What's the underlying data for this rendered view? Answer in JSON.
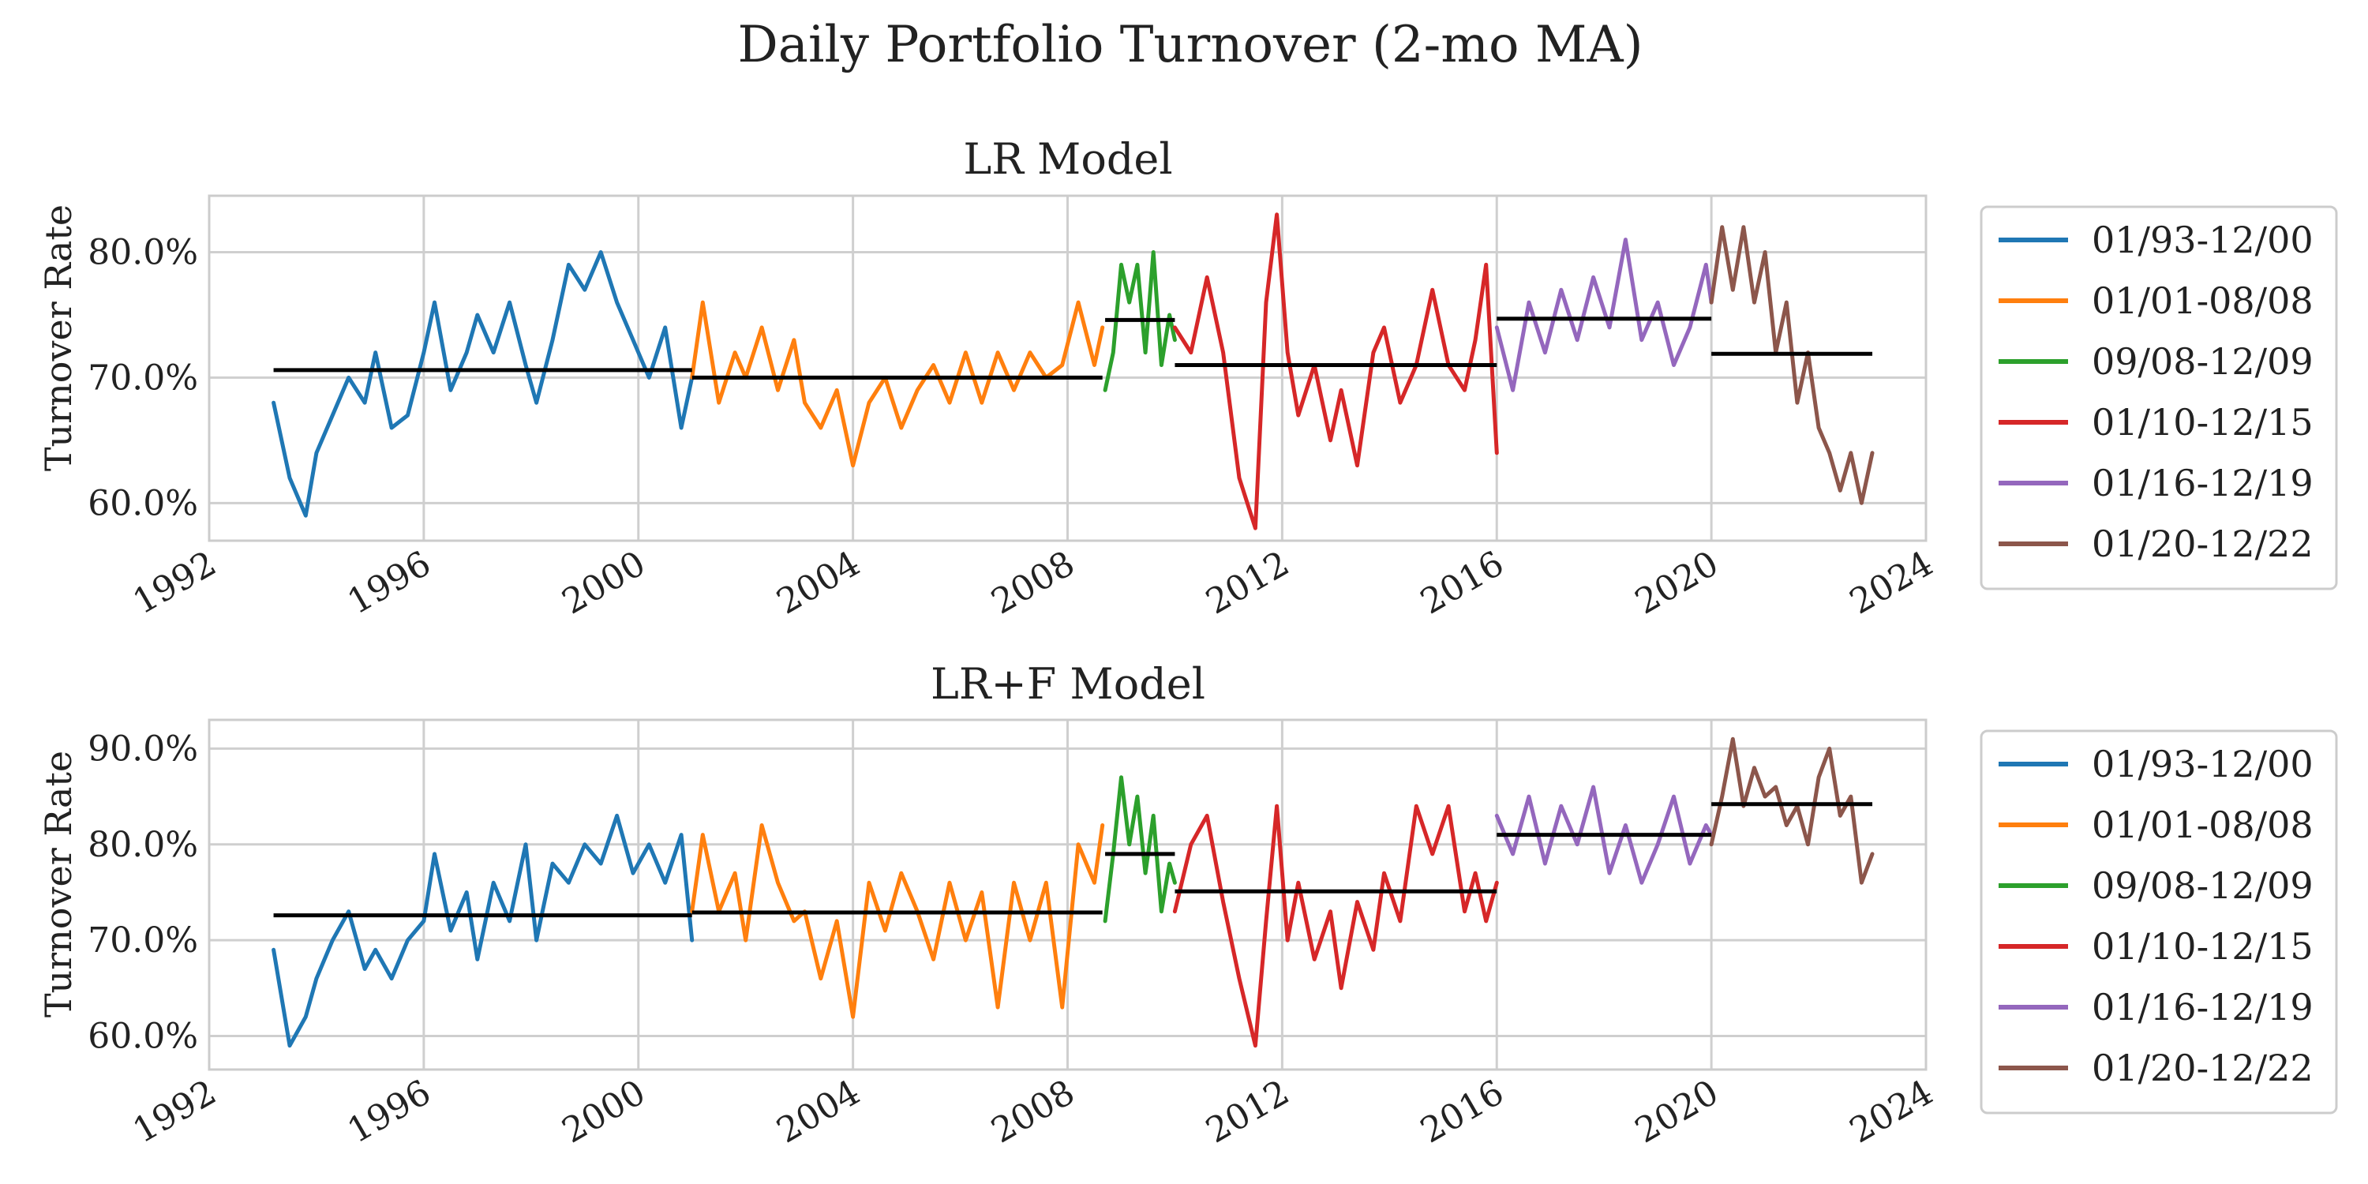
{
  "chart_data": {
    "title": "Daily Portfolio Turnover (2-mo MA)",
    "type": "line",
    "xlim": [
      1992.0,
      2024.0
    ],
    "x_ticks": [
      "1992",
      "1996",
      "2000",
      "2004",
      "2008",
      "2012",
      "2016",
      "2020",
      "2024"
    ],
    "x_tick_values": [
      1992,
      1996,
      2000,
      2004,
      2008,
      2012,
      2016,
      2020,
      2024
    ],
    "grid": true,
    "legend_position": "right",
    "colors": {
      "01/93-12/00": "#1f77b4",
      "01/01-08/08": "#ff7f0e",
      "09/08-12/09": "#2ca02c",
      "01/10-12/15": "#d62728",
      "01/16-12/19": "#9467bd",
      "01/20-12/22": "#8c564b",
      "period_mean": "#000000"
    },
    "panels": [
      {
        "title": "LR Model",
        "ylabel": "Turnover Rate",
        "ylim": [
          57,
          84.5
        ],
        "y_ticks": [
          "60.0%",
          "70.0%",
          "80.0%"
        ],
        "y_tick_values": [
          60,
          70,
          80
        ],
        "legend": [
          "01/93-12/00",
          "01/01-08/08",
          "09/08-12/09",
          "01/10-12/15",
          "01/16-12/19",
          "01/20-12/22"
        ],
        "series": [
          {
            "name": "01/93-12/00",
            "x": [
              1993.2,
              1993.5,
              1993.8,
              1994.0,
              1994.3,
              1994.6,
              1994.9,
              1995.1,
              1995.4,
              1995.7,
              1996.0,
              1996.2,
              1996.5,
              1996.8,
              1997.0,
              1997.3,
              1997.6,
              1997.9,
              1998.1,
              1998.4,
              1998.7,
              1999.0,
              1999.3,
              1999.6,
              1999.9,
              2000.2,
              2000.5,
              2000.8,
              2001.0
            ],
            "values": [
              68.0,
              62.0,
              59.0,
              64.0,
              67.0,
              70.0,
              68.0,
              72.0,
              66.0,
              67.0,
              72.0,
              76.0,
              69.0,
              72.0,
              75.0,
              72.0,
              76.0,
              71.0,
              68.0,
              73.0,
              79.0,
              77.0,
              80.0,
              76.0,
              73.0,
              70.0,
              74.0,
              66.0,
              70.0
            ]
          },
          {
            "name": "01/01-08/08",
            "x": [
              2001.0,
              2001.2,
              2001.5,
              2001.8,
              2002.0,
              2002.3,
              2002.6,
              2002.9,
              2003.1,
              2003.4,
              2003.7,
              2004.0,
              2004.3,
              2004.6,
              2004.9,
              2005.2,
              2005.5,
              2005.8,
              2006.1,
              2006.4,
              2006.7,
              2007.0,
              2007.3,
              2007.6,
              2007.9,
              2008.2,
              2008.5,
              2008.65
            ],
            "values": [
              70.0,
              76.0,
              68.0,
              72.0,
              70.0,
              74.0,
              69.0,
              73.0,
              68.0,
              66.0,
              69.0,
              63.0,
              68.0,
              70.0,
              66.0,
              69.0,
              71.0,
              68.0,
              72.0,
              68.0,
              72.0,
              69.0,
              72.0,
              70.0,
              71.0,
              76.0,
              71.0,
              74.0
            ]
          },
          {
            "name": "09/08-12/09",
            "x": [
              2008.7,
              2008.85,
              2009.0,
              2009.15,
              2009.3,
              2009.45,
              2009.6,
              2009.75,
              2009.9,
              2010.0
            ],
            "values": [
              69.0,
              72.0,
              79.0,
              76.0,
              79.0,
              72.0,
              80.0,
              71.0,
              75.0,
              73.0
            ]
          },
          {
            "name": "01/10-12/15",
            "x": [
              2010.0,
              2010.3,
              2010.6,
              2010.9,
              2011.2,
              2011.5,
              2011.7,
              2011.9,
              2012.1,
              2012.3,
              2012.6,
              2012.9,
              2013.1,
              2013.4,
              2013.7,
              2013.9,
              2014.2,
              2014.5,
              2014.8,
              2015.1,
              2015.4,
              2015.6,
              2015.8,
              2016.0
            ],
            "values": [
              74.0,
              72.0,
              78.0,
              72.0,
              62.0,
              58.0,
              76.0,
              83.0,
              72.0,
              67.0,
              71.0,
              65.0,
              69.0,
              63.0,
              72.0,
              74.0,
              68.0,
              71.0,
              77.0,
              71.0,
              69.0,
              73.0,
              79.0,
              64.0
            ]
          },
          {
            "name": "01/16-12/19",
            "x": [
              2016.0,
              2016.3,
              2016.6,
              2016.9,
              2017.2,
              2017.5,
              2017.8,
              2018.1,
              2018.4,
              2018.7,
              2019.0,
              2019.3,
              2019.6,
              2019.9,
              2020.0
            ],
            "values": [
              74.0,
              69.0,
              76.0,
              72.0,
              77.0,
              73.0,
              78.0,
              74.0,
              81.0,
              73.0,
              76.0,
              71.0,
              74.0,
              79.0,
              76.0
            ]
          },
          {
            "name": "01/20-12/22",
            "x": [
              2020.0,
              2020.2,
              2020.4,
              2020.6,
              2020.8,
              2021.0,
              2021.2,
              2021.4,
              2021.6,
              2021.8,
              2022.0,
              2022.2,
              2022.4,
              2022.6,
              2022.8,
              2023.0
            ],
            "values": [
              76.0,
              82.0,
              77.0,
              82.0,
              76.0,
              80.0,
              72.0,
              76.0,
              68.0,
              72.0,
              66.0,
              64.0,
              61.0,
              64.0,
              60.0,
              64.0
            ]
          }
        ],
        "mean_lines": [
          {
            "x": [
              1993.2,
              2001.0
            ],
            "value": 70.6
          },
          {
            "x": [
              2001.0,
              2008.65
            ],
            "value": 70.0
          },
          {
            "x": [
              2008.7,
              2010.0
            ],
            "value": 74.6
          },
          {
            "x": [
              2010.0,
              2016.0
            ],
            "value": 71.0
          },
          {
            "x": [
              2016.0,
              2020.0
            ],
            "value": 74.7
          },
          {
            "x": [
              2020.0,
              2023.0
            ],
            "value": 71.9
          }
        ]
      },
      {
        "title": "LR+F Model",
        "ylabel": "Turnover Rate",
        "ylim": [
          56.5,
          93.0
        ],
        "y_ticks": [
          "60.0%",
          "70.0%",
          "80.0%",
          "90.0%"
        ],
        "y_tick_values": [
          60,
          70,
          80,
          90
        ],
        "legend": [
          "01/93-12/00",
          "01/01-08/08",
          "09/08-12/09",
          "01/10-12/15",
          "01/16-12/19",
          "01/20-12/22"
        ],
        "series": [
          {
            "name": "01/93-12/00",
            "x": [
              1993.2,
              1993.5,
              1993.8,
              1994.0,
              1994.3,
              1994.6,
              1994.9,
              1995.1,
              1995.4,
              1995.7,
              1996.0,
              1996.2,
              1996.5,
              1996.8,
              1997.0,
              1997.3,
              1997.6,
              1997.9,
              1998.1,
              1998.4,
              1998.7,
              1999.0,
              1999.3,
              1999.6,
              1999.9,
              2000.2,
              2000.5,
              2000.8,
              2001.0
            ],
            "values": [
              69.0,
              59.0,
              62.0,
              66.0,
              70.0,
              73.0,
              67.0,
              69.0,
              66.0,
              70.0,
              72.0,
              79.0,
              71.0,
              75.0,
              68.0,
              76.0,
              72.0,
              80.0,
              70.0,
              78.0,
              76.0,
              80.0,
              78.0,
              83.0,
              77.0,
              80.0,
              76.0,
              81.0,
              70.0
            ]
          },
          {
            "name": "01/01-08/08",
            "x": [
              2001.0,
              2001.2,
              2001.5,
              2001.8,
              2002.0,
              2002.3,
              2002.6,
              2002.9,
              2003.1,
              2003.4,
              2003.7,
              2004.0,
              2004.3,
              2004.6,
              2004.9,
              2005.2,
              2005.5,
              2005.8,
              2006.1,
              2006.4,
              2006.7,
              2007.0,
              2007.3,
              2007.6,
              2007.9,
              2008.2,
              2008.5,
              2008.65
            ],
            "values": [
              73.0,
              81.0,
              73.0,
              77.0,
              70.0,
              82.0,
              76.0,
              72.0,
              73.0,
              66.0,
              72.0,
              62.0,
              76.0,
              71.0,
              77.0,
              73.0,
              68.0,
              76.0,
              70.0,
              75.0,
              63.0,
              76.0,
              70.0,
              76.0,
              63.0,
              80.0,
              76.0,
              82.0
            ]
          },
          {
            "name": "09/08-12/09",
            "x": [
              2008.7,
              2008.85,
              2009.0,
              2009.15,
              2009.3,
              2009.45,
              2009.6,
              2009.75,
              2009.9,
              2010.0
            ],
            "values": [
              72.0,
              79.0,
              87.0,
              80.0,
              85.0,
              77.0,
              83.0,
              73.0,
              78.0,
              76.0
            ]
          },
          {
            "name": "01/10-12/15",
            "x": [
              2010.0,
              2010.3,
              2010.6,
              2010.9,
              2011.2,
              2011.5,
              2011.7,
              2011.9,
              2012.1,
              2012.3,
              2012.6,
              2012.9,
              2013.1,
              2013.4,
              2013.7,
              2013.9,
              2014.2,
              2014.5,
              2014.8,
              2015.1,
              2015.4,
              2015.6,
              2015.8,
              2016.0
            ],
            "values": [
              73.0,
              80.0,
              83.0,
              74.0,
              66.0,
              59.0,
              72.0,
              84.0,
              70.0,
              76.0,
              68.0,
              73.0,
              65.0,
              74.0,
              69.0,
              77.0,
              72.0,
              84.0,
              79.0,
              84.0,
              73.0,
              77.0,
              72.0,
              76.0
            ]
          },
          {
            "name": "01/16-12/19",
            "x": [
              2016.0,
              2016.3,
              2016.6,
              2016.9,
              2017.2,
              2017.5,
              2017.8,
              2018.1,
              2018.4,
              2018.7,
              2019.0,
              2019.3,
              2019.6,
              2019.9,
              2020.0
            ],
            "values": [
              83.0,
              79.0,
              85.0,
              78.0,
              84.0,
              80.0,
              86.0,
              77.0,
              82.0,
              76.0,
              80.0,
              85.0,
              78.0,
              82.0,
              81.0
            ]
          },
          {
            "name": "01/20-12/22",
            "x": [
              2020.0,
              2020.2,
              2020.4,
              2020.6,
              2020.8,
              2021.0,
              2021.2,
              2021.4,
              2021.6,
              2021.8,
              2022.0,
              2022.2,
              2022.4,
              2022.6,
              2022.8,
              2023.0
            ],
            "values": [
              80.0,
              85.0,
              91.0,
              84.0,
              88.0,
              85.0,
              86.0,
              82.0,
              84.0,
              80.0,
              87.0,
              90.0,
              83.0,
              85.0,
              76.0,
              79.0
            ]
          }
        ],
        "mean_lines": [
          {
            "x": [
              1993.2,
              2001.0
            ],
            "value": 72.6
          },
          {
            "x": [
              2001.0,
              2008.65
            ],
            "value": 72.9
          },
          {
            "x": [
              2008.7,
              2010.0
            ],
            "value": 79.0
          },
          {
            "x": [
              2010.0,
              2016.0
            ],
            "value": 75.1
          },
          {
            "x": [
              2016.0,
              2020.0
            ],
            "value": 81.0
          },
          {
            "x": [
              2020.0,
              2023.0
            ],
            "value": 84.2
          }
        ]
      }
    ]
  }
}
